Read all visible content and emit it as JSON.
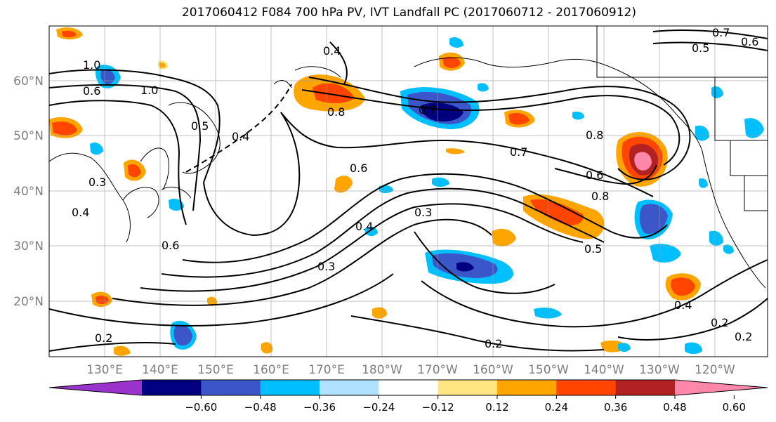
{
  "title": "2017060412 F084 700 hPa PV, IVT Landfall PC (2017060712 - 2017060912)",
  "map": {
    "lat_labels": [
      "60°N",
      "50°N",
      "40°N",
      "30°N",
      "20°N"
    ],
    "lon_labels": [
      "130°E",
      "140°E",
      "150°E",
      "160°E",
      "170°E",
      "180°W",
      "170°W",
      "160°W",
      "150°W",
      "140°W",
      "130°W",
      "120°W"
    ],
    "contour_labels": [
      "1.0",
      "0.6",
      "1.0",
      "0.5",
      "0.4",
      "0.4",
      "0.8",
      "0.7",
      "0.6",
      "0.7",
      "0.8",
      "0.6",
      "0.8",
      "0.5",
      "0.3",
      "0.4",
      "0.3",
      "0.6",
      "0.4",
      "0.3",
      "0.4",
      "0.2",
      "0.2",
      "0.2",
      "0.2",
      "0.7",
      "0.6",
      "0.5"
    ]
  },
  "colorbar": {
    "ticks": [
      "−0.60",
      "−0.48",
      "−0.36",
      "−0.24",
      "−0.12",
      "0.12",
      "0.24",
      "0.36",
      "0.48",
      "0.60"
    ],
    "colors": [
      "#9933cc",
      "#000080",
      "#3a56c8",
      "#00bfff",
      "#b0e2ff",
      "#ffffff",
      "#ffe680",
      "#ffa500",
      "#ff4500",
      "#b22222",
      "#ff88aa"
    ]
  }
}
